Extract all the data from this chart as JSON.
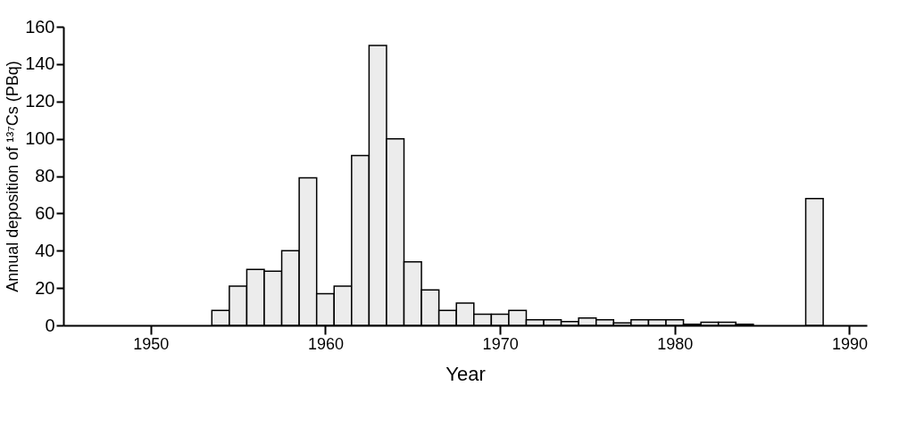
{
  "chart_data": {
    "type": "bar",
    "xlabel": "Year",
    "ylabel": "Annual deposition of ¹³⁷Cs (PBq)",
    "x": [
      1954,
      1955,
      1956,
      1957,
      1958,
      1959,
      1960,
      1961,
      1962,
      1963,
      1964,
      1965,
      1966,
      1967,
      1968,
      1969,
      1970,
      1971,
      1972,
      1973,
      1974,
      1975,
      1976,
      1977,
      1978,
      1979,
      1980,
      1981,
      1982,
      1983,
      1984,
      1988
    ],
    "values": [
      8,
      21,
      30,
      29,
      40,
      79,
      17,
      21,
      91,
      150,
      100,
      34,
      19,
      8,
      12,
      6,
      6,
      8,
      3,
      3,
      2,
      4,
      3,
      1.3,
      3,
      3,
      3,
      0.6,
      1.7,
      1.7,
      0.6,
      68
    ],
    "color": "#ececec",
    "xlim": [
      1945,
      1991
    ],
    "xticks": [
      1950,
      1960,
      1970,
      1980,
      1990
    ],
    "ylim": [
      0,
      160
    ],
    "yticks": [
      0,
      20,
      40,
      60,
      80,
      100,
      120,
      140,
      160
    ],
    "grid": false
  }
}
